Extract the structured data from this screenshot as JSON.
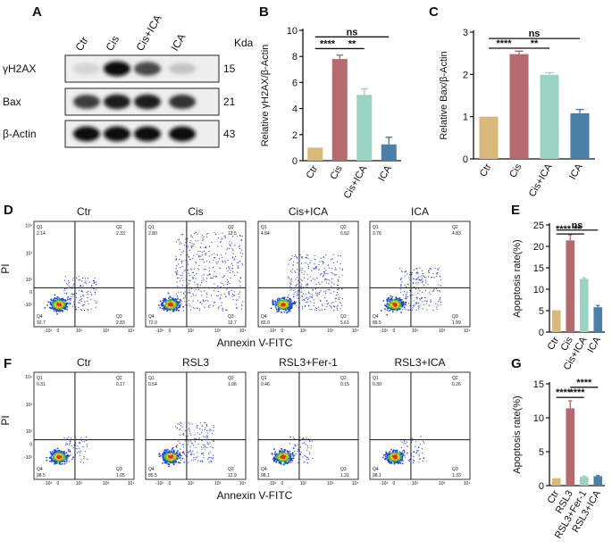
{
  "panels": {
    "A": "A",
    "B": "B",
    "C": "C",
    "D": "D",
    "E": "E",
    "F": "F",
    "G": "G"
  },
  "blot": {
    "lanes": [
      "Ctr",
      "Cis",
      "Cis+ICA",
      "ICA"
    ],
    "kda_header": "Kda",
    "rows": [
      {
        "name": "γH2AX",
        "kda": "15",
        "intensity": [
          0.08,
          0.95,
          0.7,
          0.15
        ]
      },
      {
        "name": "Bax",
        "kda": "21",
        "intensity": [
          0.75,
          0.9,
          0.9,
          0.8
        ]
      },
      {
        "name": "β-Actin",
        "kda": "43",
        "intensity": [
          0.95,
          0.95,
          0.95,
          0.95
        ]
      }
    ]
  },
  "flow_D": {
    "titles": [
      "Ctr",
      "Cis",
      "Cis+ICA",
      "ICA"
    ],
    "quadrants": [
      {
        "q1": "2.14",
        "q2": "2.33",
        "q3": "2.83",
        "q4": "92.7"
      },
      {
        "q1": "2.80",
        "q2": "12.5",
        "q3": "12.7",
        "q4": "72.0"
      },
      {
        "q1": "4.84",
        "q2": "6.52",
        "q3": "5.61",
        "q4": "83.0"
      },
      {
        "q1": "3.76",
        "q2": "4.83",
        "q3": "1.99",
        "q4": "89.5"
      }
    ],
    "spread": [
      0.2,
      1.0,
      0.6,
      0.35
    ],
    "xlabel": "Annexin V-FITC",
    "ylabel": "PI"
  },
  "flow_F": {
    "titles": [
      "Ctr",
      "RSL3",
      "RSL3+Fer-1",
      "RSL3+ICA"
    ],
    "quadrants": [
      {
        "q1": "0.31",
        "q2": "0.17",
        "q3": "1.05",
        "q4": "98.5"
      },
      {
        "q1": "0.54",
        "q2": "1.06",
        "q3": "12.9",
        "q4": "85.5"
      },
      {
        "q1": "0.46",
        "q2": "0.15",
        "q3": "1.31",
        "q4": "98.1"
      },
      {
        "q1": "0.30",
        "q2": "0.26",
        "q3": "1.33",
        "q4": "98.1"
      }
    ],
    "spread": [
      0.05,
      0.3,
      0.05,
      0.05
    ],
    "xlabel": "Annexin V-FITC",
    "ylabel": "PI"
  },
  "flow_labels": {
    "q1": "Q1",
    "q2": "Q2",
    "q3": "Q3",
    "q4": "Q4"
  },
  "flow_ticks": {
    "x": [
      "-10²",
      "0",
      "10²",
      "10³",
      "10⁴"
    ],
    "y": [
      "10⁴",
      "10³",
      "10²",
      "0",
      "-10²"
    ]
  },
  "significance": {
    "ns": "ns",
    "p4": "****",
    "p2": "**"
  },
  "chart_data": [
    {
      "id": "B",
      "type": "bar",
      "categories": [
        "Ctr",
        "Cis",
        "Cis+ICA",
        "ICA"
      ],
      "values": [
        1.0,
        7.8,
        5.05,
        1.25
      ],
      "errors": [
        0.0,
        0.3,
        0.45,
        0.55
      ],
      "colors": [
        "#d9b97b",
        "#b56a6e",
        "#9ad3c2",
        "#4a7fa8"
      ],
      "ylabel": "Relative γH2AX/β-Actin",
      "ylim": [
        0,
        10
      ],
      "yticks": [
        0,
        2,
        4,
        6,
        8,
        10
      ],
      "yticklabels": [
        "0",
        "2",
        "4",
        "6",
        "8",
        "10"
      ]
    },
    {
      "id": "C",
      "type": "bar",
      "categories": [
        "Ctr",
        "Cis",
        "Cis+ICA",
        "ICA"
      ],
      "values": [
        1.0,
        2.48,
        1.99,
        1.08
      ],
      "errors": [
        0.0,
        0.07,
        0.05,
        0.09
      ],
      "colors": [
        "#d9b97b",
        "#b56a6e",
        "#9ad3c2",
        "#4a7fa8"
      ],
      "ylabel": "Relative Bax/β-Actin",
      "ylim": [
        0,
        3
      ],
      "yticks": [
        0,
        1,
        2,
        3
      ],
      "yticklabels": [
        "0",
        "1",
        "2",
        "3"
      ]
    },
    {
      "id": "E",
      "type": "bar",
      "categories": [
        "Ctr",
        "Cis",
        "Cis+ICA",
        "ICA"
      ],
      "values": [
        5.1,
        21.4,
        12.4,
        5.8
      ],
      "errors": [
        0.0,
        1.3,
        0.3,
        0.4
      ],
      "colors": [
        "#d9b97b",
        "#b56a6e",
        "#9ad3c2",
        "#4a7fa8"
      ],
      "ylabel": "Apoptosis rate(%)",
      "ylim": [
        0,
        25
      ],
      "yticks": [
        0,
        5,
        10,
        15,
        20,
        25
      ],
      "yticklabels": [
        "0",
        "5",
        "10",
        "15",
        "20",
        "25"
      ]
    },
    {
      "id": "G",
      "type": "bar",
      "categories": [
        "Ctr",
        "RSL3",
        "RSL3+Fer-1",
        "RSL3+ICA"
      ],
      "values": [
        1.1,
        11.4,
        1.3,
        1.4
      ],
      "errors": [
        0.0,
        1.1,
        0.1,
        0.1
      ],
      "colors": [
        "#d9b97b",
        "#b56a6e",
        "#9ad3c2",
        "#4a7fa8"
      ],
      "ylabel": "Apoptosis rate(%)",
      "ylim": [
        0,
        15
      ],
      "yticks": [
        0,
        5,
        10,
        15
      ],
      "yticklabels": [
        "0",
        "5",
        "10",
        "15"
      ]
    }
  ]
}
